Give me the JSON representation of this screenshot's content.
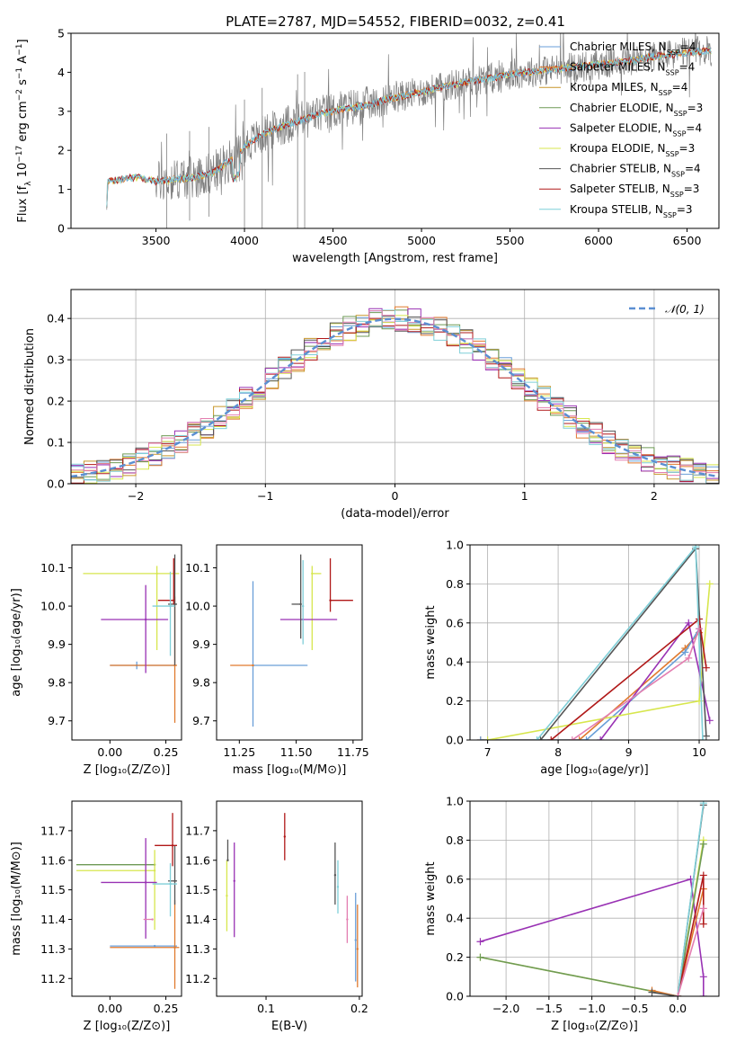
{
  "figure_title": "PLATE=2787, MJD=54552, FIBERID=0032, z=0.41",
  "colors": {
    "Chabrier MILES": "#6a9fd8",
    "Salpeter MILES": "#e07a2e",
    "Kroupa MILES": "#c8962a",
    "Chabrier ELODIE": "#6e9a55",
    "Salpeter ELODIE": "#9932b4",
    "Kroupa ELODIE": "#d7e64d",
    "Chabrier STELIB": "#555555",
    "Salpeter STELIB": "#b01818",
    "Kroupa STELIB": "#7fcfd8",
    "data": "#7f7f7f",
    "gauss": "#5b8fd2",
    "extra_pink": "#e37eb0",
    "extra_lime": "#c0e060"
  },
  "chart_data": [
    {
      "id": "spectrum",
      "type": "line",
      "title": "PLATE=2787, MJD=54552, FIBERID=0032, z=0.41",
      "xlabel": "wavelength [Angstrom, rest frame]",
      "ylabel": "Flux [f_λ 10^-17 erg cm^-2 s^-1 A^-1]",
      "xlim": [
        3020,
        6680
      ],
      "ylim": [
        0,
        5
      ],
      "xticks": [
        3500,
        4000,
        4500,
        5000,
        5500,
        6000,
        6500
      ],
      "yticks": [
        0,
        1,
        2,
        3,
        4,
        5
      ],
      "legend_position": "right",
      "legend": [
        {
          "name": "Chabrier MILES",
          "nssp": "4"
        },
        {
          "name": "Salpeter MILES",
          "nssp": "4"
        },
        {
          "name": "Kroupa MILES",
          "nssp": "4"
        },
        {
          "name": "Chabrier ELODIE",
          "nssp": "3"
        },
        {
          "name": "Salpeter ELODIE",
          "nssp": "4"
        },
        {
          "name": "Kroupa ELODIE",
          "nssp": "3"
        },
        {
          "name": "Chabrier STELIB",
          "nssp": "4"
        },
        {
          "name": "Salpeter STELIB",
          "nssp": "3"
        },
        {
          "name": "Kroupa STELIB",
          "nssp": "3"
        }
      ],
      "continuum_model": [
        [
          3220,
          0.0
        ],
        [
          3225,
          1.2
        ],
        [
          3300,
          1.25
        ],
        [
          3350,
          1.3
        ],
        [
          3400,
          1.3
        ],
        [
          3500,
          1.2
        ],
        [
          3600,
          1.25
        ],
        [
          3700,
          1.3
        ],
        [
          3800,
          1.4
        ],
        [
          3850,
          1.5
        ],
        [
          3900,
          1.7
        ],
        [
          3950,
          1.8
        ],
        [
          4000,
          2.1
        ],
        [
          4100,
          2.4
        ],
        [
          4200,
          2.6
        ],
        [
          4300,
          2.75
        ],
        [
          4400,
          2.9
        ],
        [
          4500,
          3.0
        ],
        [
          4600,
          3.1
        ],
        [
          4700,
          3.15
        ],
        [
          4800,
          3.3
        ],
        [
          4900,
          3.4
        ],
        [
          5000,
          3.5
        ],
        [
          5100,
          3.6
        ],
        [
          5200,
          3.7
        ],
        [
          5300,
          3.8
        ],
        [
          5400,
          3.85
        ],
        [
          5500,
          3.95
        ],
        [
          5600,
          4.0
        ],
        [
          5700,
          4.05
        ],
        [
          5800,
          4.1
        ],
        [
          5900,
          4.15
        ],
        [
          6000,
          4.2
        ],
        [
          6100,
          4.25
        ],
        [
          6200,
          4.3
        ],
        [
          6300,
          4.4
        ],
        [
          6400,
          4.45
        ],
        [
          6500,
          4.5
        ],
        [
          6600,
          4.55
        ]
      ]
    },
    {
      "id": "residuals",
      "type": "step",
      "xlabel": "(data-model)/error",
      "ylabel": "Normed distribution",
      "xlim": [
        -2.5,
        2.5
      ],
      "ylim": [
        0,
        0.47
      ],
      "xticks": [
        -2,
        -1,
        0,
        1,
        2
      ],
      "yticks": [
        0.0,
        0.1,
        0.2,
        0.3,
        0.4
      ],
      "grid": true,
      "legend_position": "top-right",
      "legend": [
        "N(0,1)"
      ],
      "bin_width": 0.1,
      "bin_start": -2.5,
      "reference_curve": "gaussian, mean 0, sigma 1"
    },
    {
      "id": "age_vs_Z",
      "type": "errorbar",
      "xlabel": "Z [log10(Z/Z_sun)]",
      "ylabel": "age [log10(age/yr)]",
      "xlim": [
        -0.17,
        0.32
      ],
      "ylim": [
        9.65,
        10.16
      ],
      "xticks": [
        0.0,
        0.25
      ],
      "yticks": [
        9.7,
        9.8,
        9.9,
        10.0,
        10.1
      ],
      "points": [
        {
          "series": "Chabrier MILES",
          "x": 0.12,
          "xerr": [
            0.12,
            0.17
          ],
          "y": 9.845,
          "yerr": [
            0.01,
            0.01
          ]
        },
        {
          "series": "Salpeter MILES",
          "x": 0.29,
          "xerr": [
            0.29,
            0.01
          ],
          "y": 9.845,
          "yerr": [
            0.15,
            0.18
          ]
        },
        {
          "series": "Kroupa ELODIE",
          "x": 0.21,
          "xerr": [
            0.33,
            0.1
          ],
          "y": 10.085,
          "yerr": [
            0.2,
            0.02
          ]
        },
        {
          "series": "Salpeter ELODIE",
          "x": 0.16,
          "xerr": [
            0.2,
            0.1
          ],
          "y": 9.965,
          "yerr": [
            0.14,
            0.09
          ]
        },
        {
          "series": "Chabrier STELIB",
          "x": 0.29,
          "xerr": [
            0.03,
            0.01
          ],
          "y": 10.005,
          "yerr": [
            0.16,
            0.13
          ]
        },
        {
          "series": "Salpeter STELIB",
          "x": 0.285,
          "xerr": [
            0.07,
            0.0
          ],
          "y": 10.015,
          "yerr": [
            0.01,
            0.11
          ]
        },
        {
          "series": "Kroupa STELIB",
          "x": 0.27,
          "xerr": [
            0.08,
            0.02
          ],
          "y": 10.0,
          "yerr": [
            0.13,
            0.09
          ]
        }
      ]
    },
    {
      "id": "age_vs_mass",
      "type": "errorbar",
      "xlabel": "mass [log10(M/M_sun)]",
      "ylabel": "",
      "xlim": [
        11.15,
        11.79
      ],
      "ylim": [
        9.65,
        10.16
      ],
      "xticks": [
        11.25,
        11.5,
        11.75
      ],
      "yticks": [
        9.7,
        9.8,
        9.9,
        10.0,
        10.1
      ],
      "points": [
        {
          "series": "Chabrier MILES",
          "x": 11.31,
          "xerr": [
            0.0,
            0.24
          ],
          "y": 9.845,
          "yerr": [
            0.16,
            0.22
          ]
        },
        {
          "series": "Salpeter MILES",
          "x": 11.31,
          "xerr": [
            0.1,
            0.0
          ],
          "y": 9.845,
          "yerr": [
            0.0,
            0.0
          ]
        },
        {
          "series": "Kroupa ELODIE",
          "x": 11.57,
          "xerr": [
            0.0,
            0.04
          ],
          "y": 10.085,
          "yerr": [
            0.2,
            0.02
          ]
        },
        {
          "series": "Salpeter ELODIE",
          "x": 11.53,
          "xerr": [
            0.1,
            0.15
          ],
          "y": 9.965,
          "yerr": [
            0.0,
            0.0
          ]
        },
        {
          "series": "Chabrier STELIB",
          "x": 11.52,
          "xerr": [
            0.04,
            0.0
          ],
          "y": 10.005,
          "yerr": [
            0.09,
            0.13
          ]
        },
        {
          "series": "Salpeter STELIB",
          "x": 11.65,
          "xerr": [
            0.0,
            0.1
          ],
          "y": 10.015,
          "yerr": [
            0.03,
            0.11
          ]
        },
        {
          "series": "Kroupa STELIB",
          "x": 11.53,
          "xerr": [
            0.0,
            0.0
          ],
          "y": 10.0,
          "yerr": [
            0.1,
            0.12
          ]
        }
      ]
    },
    {
      "id": "massweight_vs_age",
      "type": "line",
      "xlabel": "age [log10(age/yr)]",
      "ylabel": "mass weight",
      "xlim": [
        6.75,
        10.28
      ],
      "ylim": [
        0,
        1
      ],
      "xticks": [
        7,
        8,
        9,
        10
      ],
      "yticks": [
        0.0,
        0.2,
        0.4,
        0.6,
        0.8,
        1.0
      ],
      "grid": true,
      "series": [
        {
          "name": "Salpeter MILES",
          "points": [
            [
              6.9,
              0.0
            ],
            [
              8.3,
              0.0
            ],
            [
              9.8,
              0.47
            ],
            [
              10.0,
              0.55
            ]
          ]
        },
        {
          "name": "Chabrier MILES",
          "points": [
            [
              6.9,
              0.0
            ],
            [
              8.4,
              0.0
            ],
            [
              9.8,
              0.45
            ],
            [
              10.0,
              0.57
            ]
          ]
        },
        {
          "name": "Salpeter ELODIE",
          "points": [
            [
              8.6,
              0.0
            ],
            [
              9.85,
              0.6
            ],
            [
              10.15,
              0.1
            ]
          ]
        },
        {
          "name": "Kroupa ELODIE",
          "points": [
            [
              7.0,
              0.0
            ],
            [
              10.0,
              0.2
            ],
            [
              10.15,
              0.8
            ]
          ]
        },
        {
          "name": "Chabrier STELIB",
          "points": [
            [
              7.75,
              0.0
            ],
            [
              9.95,
              0.98
            ],
            [
              10.1,
              0.02
            ]
          ]
        },
        {
          "name": "Salpeter STELIB",
          "points": [
            [
              7.9,
              0.0
            ],
            [
              10.0,
              0.62
            ],
            [
              10.1,
              0.37
            ]
          ]
        },
        {
          "name": "Kroupa STELIB",
          "points": [
            [
              7.7,
              0.0
            ],
            [
              9.95,
              0.99
            ],
            [
              10.05,
              0.0
            ]
          ]
        },
        {
          "name": "extra_pink",
          "points": [
            [
              8.2,
              0.0
            ],
            [
              9.85,
              0.42
            ],
            [
              10.0,
              0.57
            ]
          ]
        }
      ]
    },
    {
      "id": "mass_vs_Z",
      "type": "errorbar",
      "xlabel": "Z [log10(Z/Z_sun)]",
      "ylabel": "mass [log10(M/M_sun)]",
      "xlim": [
        -0.17,
        0.32
      ],
      "ylim": [
        11.14,
        11.8
      ],
      "xticks": [
        0.0,
        0.25
      ],
      "yticks": [
        11.2,
        11.3,
        11.4,
        11.5,
        11.6,
        11.7
      ],
      "points": [
        {
          "series": "Chabrier MILES",
          "x": 0.2,
          "xerr": [
            0.2,
            0.1
          ],
          "y": 11.31,
          "yerr": [
            0.0,
            0.0
          ]
        },
        {
          "series": "Salpeter MILES",
          "x": 0.29,
          "xerr": [
            0.29,
            0.02
          ],
          "y": 11.305,
          "yerr": [
            0.14,
            0.16
          ]
        },
        {
          "series": "Chabrier ELODIE",
          "x": 0.2,
          "xerr": [
            0.35,
            0.0
          ],
          "y": 11.585,
          "yerr": [
            0.0,
            0.0
          ]
        },
        {
          "series": "Kroupa ELODIE",
          "x": 0.2,
          "xerr": [
            0.35,
            0.0
          ],
          "y": 11.565,
          "yerr": [
            0.2,
            0.07
          ]
        },
        {
          "series": "Salpeter ELODIE",
          "x": 0.16,
          "xerr": [
            0.2,
            0.05
          ],
          "y": 11.525,
          "yerr": [
            0.19,
            0.15
          ]
        },
        {
          "series": "Chabrier STELIB",
          "x": 0.29,
          "xerr": [
            0.03,
            0.01
          ],
          "y": 11.53,
          "yerr": [
            0.08,
            0.12
          ]
        },
        {
          "series": "Salpeter STELIB",
          "x": 0.28,
          "xerr": [
            0.08,
            0.02
          ],
          "y": 11.65,
          "yerr": [
            0.07,
            0.11
          ]
        },
        {
          "series": "Kroupa STELIB",
          "x": 0.27,
          "xerr": [
            0.08,
            0.03
          ],
          "y": 11.52,
          "yerr": [
            0.11,
            0.07
          ]
        },
        {
          "series": "extra_pink",
          "x": 0.19,
          "xerr": [
            0.04,
            0.0
          ],
          "y": 11.4,
          "yerr": [
            0.0,
            0.0
          ]
        }
      ]
    },
    {
      "id": "mass_vs_EBV",
      "type": "errorbar",
      "xlabel": "E(B-V)",
      "ylabel": "",
      "xlim": [
        0.047,
        0.203
      ],
      "ylim": [
        11.14,
        11.8
      ],
      "xticks": [
        0.1,
        0.2
      ],
      "yticks": [
        11.2,
        11.3,
        11.4,
        11.5,
        11.6,
        11.7
      ],
      "points": [
        {
          "series": "Kroupa ELODIE",
          "x": 0.058,
          "y": 11.48,
          "yerr": [
            0.12,
            0.12
          ]
        },
        {
          "series": "Chabrier STELIB",
          "x": 0.059,
          "y": 11.6,
          "yerr": [
            0.0,
            0.07
          ]
        },
        {
          "series": "Salpeter ELODIE",
          "x": 0.066,
          "y": 11.53,
          "yerr": [
            0.19,
            0.13
          ]
        },
        {
          "series": "Salpeter STELIB",
          "x": 0.12,
          "y": 11.68,
          "yerr": [
            0.08,
            0.08
          ]
        },
        {
          "series": "Chabrier STELIB",
          "x": 0.174,
          "y": 11.55,
          "yerr": [
            0.1,
            0.11
          ]
        },
        {
          "series": "Kroupa STELIB",
          "x": 0.177,
          "y": 11.51,
          "yerr": [
            0.09,
            0.09
          ]
        },
        {
          "series": "extra_pink",
          "x": 0.187,
          "y": 11.4,
          "yerr": [
            0.08,
            0.08
          ]
        },
        {
          "series": "Chabrier MILES",
          "x": 0.196,
          "y": 11.33,
          "yerr": [
            0.14,
            0.16
          ]
        },
        {
          "series": "Salpeter MILES",
          "x": 0.198,
          "y": 11.3,
          "yerr": [
            0.13,
            0.15
          ]
        }
      ]
    },
    {
      "id": "massweight_vs_Z",
      "type": "line",
      "xlabel": "Z [log10(Z/Z_sun)]",
      "ylabel": "mass weight",
      "xlim": [
        -2.42,
        0.48
      ],
      "ylim": [
        0,
        1
      ],
      "xticks": [
        -2.0,
        -1.5,
        -1.0,
        -0.5,
        0.0
      ],
      "yticks": [
        0.0,
        0.2,
        0.4,
        0.6,
        0.8,
        1.0
      ],
      "grid": true,
      "series": [
        {
          "name": "Salpeter ELODIE",
          "points": [
            [
              -2.3,
              0.28
            ],
            [
              0.15,
              0.6
            ],
            [
              0.3,
              0.1
            ],
            [
              0.3,
              0.0
            ]
          ]
        },
        {
          "name": "Kroupa ELODIE",
          "points": [
            [
              -2.3,
              0.2
            ],
            [
              0.0,
              0.0
            ],
            [
              0.3,
              0.8
            ]
          ]
        },
        {
          "name": "Chabrier ELODIE",
          "points": [
            [
              -2.3,
              0.2
            ],
            [
              0.0,
              0.0
            ],
            [
              0.3,
              0.78
            ]
          ]
        },
        {
          "name": "Salpeter MILES",
          "points": [
            [
              -0.3,
              0.03
            ],
            [
              0.0,
              0.0
            ],
            [
              0.3,
              0.55
            ]
          ]
        },
        {
          "name": "Chabrier STELIB",
          "points": [
            [
              -0.3,
              0.02
            ],
            [
              0.0,
              0.0
            ],
            [
              0.3,
              0.98
            ]
          ]
        },
        {
          "name": "Salpeter STELIB",
          "points": [
            [
              0.0,
              0.0
            ],
            [
              0.3,
              0.62
            ],
            [
              0.3,
              0.37
            ]
          ]
        },
        {
          "name": "Kroupa STELIB",
          "points": [
            [
              0.0,
              0.0
            ],
            [
              0.3,
              0.99
            ]
          ]
        },
        {
          "name": "extra_pink",
          "points": [
            [
              0.0,
              0.0
            ],
            [
              0.3,
              0.45
            ]
          ]
        }
      ]
    }
  ]
}
